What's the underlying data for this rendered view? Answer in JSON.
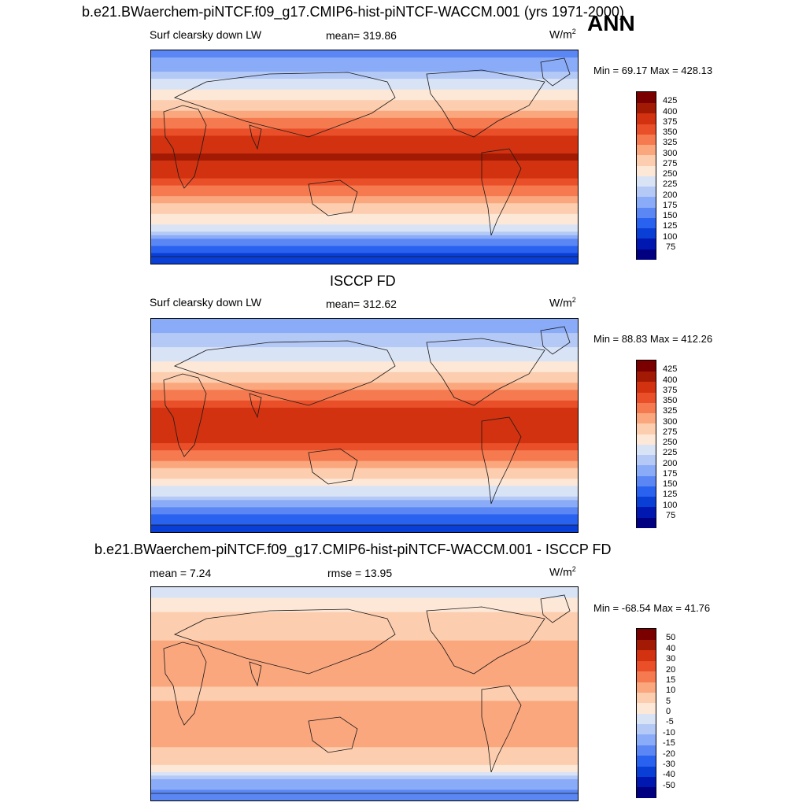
{
  "header": {
    "title": "b.e21.BWaerchem-piNTCF.f09_g17.CMIP6-hist-piNTCF-WACCM.001 (yrs 1971-2000)",
    "season": "ANN"
  },
  "panels": [
    {
      "title": "",
      "variable": "Surf clearsky down LW",
      "stat": "mean= 319.86",
      "units": "W/m",
      "units_sup": "2",
      "minmax": "Min =  69.17 Max = 428.13"
    },
    {
      "title": "ISCCP FD",
      "variable": "Surf clearsky down LW",
      "stat": "mean= 312.62",
      "units": "W/m",
      "units_sup": "2",
      "minmax": "Min =  88.83 Max = 412.26"
    },
    {
      "title": "b.e21.BWaerchem-piNTCF.f09_g17.CMIP6-hist-piNTCF-WACCM.001 - ISCCP FD",
      "variable": "mean =   7.24",
      "stat": "rmse =  13.95",
      "units": "W/m",
      "units_sup": "2",
      "minmax": "Min = -68.54 Max =  41.76"
    }
  ],
  "chart_data": [
    {
      "type": "heatmap",
      "title": "b.e21.BWaerchem-piNTCF.f09_g17.CMIP6-hist-piNTCF-WACCM.001 (yrs 1971-2000)",
      "variable": "Surf clearsky down LW",
      "units": "W/m2",
      "mean": 319.86,
      "min": 69.17,
      "max": 428.13,
      "levels": [
        75,
        100,
        125,
        150,
        175,
        200,
        225,
        250,
        275,
        300,
        325,
        350,
        375,
        400,
        425
      ],
      "colors": [
        "#000080",
        "#0018b0",
        "#0a3fd6",
        "#2a62f0",
        "#5b87f5",
        "#8aabf7",
        "#b4c9f5",
        "#d8e3f6",
        "#fde8d8",
        "#fccdae",
        "#fba77e",
        "#f67a4f",
        "#e9502a",
        "#d23210",
        "#a31a04",
        "#7a0000"
      ],
      "lat_profile": [
        [
          90,
          165
        ],
        [
          75,
          195
        ],
        [
          60,
          240
        ],
        [
          45,
          280
        ],
        [
          30,
          330
        ],
        [
          15,
          385
        ],
        [
          0,
          405
        ],
        [
          -15,
          385
        ],
        [
          -30,
          330
        ],
        [
          -45,
          285
        ],
        [
          -60,
          240
        ],
        [
          -75,
          140
        ],
        [
          -90,
          100
        ]
      ]
    },
    {
      "type": "heatmap",
      "title": "ISCCP FD",
      "variable": "Surf clearsky down LW",
      "units": "W/m2",
      "mean": 312.62,
      "min": 88.83,
      "max": 412.26,
      "levels": [
        75,
        100,
        125,
        150,
        175,
        200,
        225,
        250,
        275,
        300,
        325,
        350,
        375,
        400,
        425
      ],
      "colors": [
        "#000080",
        "#0018b0",
        "#0a3fd6",
        "#2a62f0",
        "#5b87f5",
        "#8aabf7",
        "#b4c9f5",
        "#d8e3f6",
        "#fde8d8",
        "#fccdae",
        "#fba77e",
        "#f67a4f",
        "#e9502a",
        "#d23210",
        "#a31a04",
        "#7a0000"
      ],
      "lat_profile": [
        [
          90,
          180
        ],
        [
          75,
          205
        ],
        [
          60,
          235
        ],
        [
          45,
          275
        ],
        [
          30,
          320
        ],
        [
          15,
          375
        ],
        [
          0,
          390
        ],
        [
          -15,
          375
        ],
        [
          -30,
          320
        ],
        [
          -45,
          275
        ],
        [
          -60,
          220
        ],
        [
          -75,
          145
        ],
        [
          -90,
          105
        ]
      ]
    },
    {
      "type": "heatmap",
      "title": "b.e21.BWaerchem-piNTCF.f09_g17.CMIP6-hist-piNTCF-WACCM.001 - ISCCP FD",
      "units": "W/m2",
      "mean": 7.24,
      "rmse": 13.95,
      "min": -68.54,
      "max": 41.76,
      "levels": [
        -50,
        -40,
        -30,
        -20,
        -15,
        -10,
        -5,
        0,
        5,
        10,
        15,
        20,
        30,
        40,
        50
      ],
      "colors": [
        "#000080",
        "#0018b0",
        "#0a3fd6",
        "#2a62f0",
        "#5b87f5",
        "#8aabf7",
        "#b4c9f5",
        "#d8e3f6",
        "#fde8d8",
        "#fccdae",
        "#fba77e",
        "#f67a4f",
        "#e9502a",
        "#d23210",
        "#a31a04",
        "#7a0000"
      ],
      "lat_profile": [
        [
          90,
          -3
        ],
        [
          75,
          2
        ],
        [
          60,
          8
        ],
        [
          45,
          10
        ],
        [
          30,
          14
        ],
        [
          15,
          12
        ],
        [
          0,
          8
        ],
        [
          -15,
          12
        ],
        [
          -30,
          14
        ],
        [
          -45,
          10
        ],
        [
          -60,
          6
        ],
        [
          -75,
          -12
        ],
        [
          -90,
          -20
        ]
      ]
    }
  ]
}
